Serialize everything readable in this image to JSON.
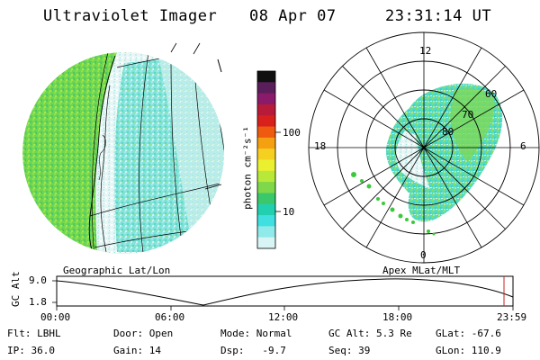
{
  "header": {
    "instrument": "Ultraviolet Imager",
    "date": "08 Apr 07",
    "time": "23:31:14 UT"
  },
  "colorbar": {
    "unit_label": "photon cm⁻²s⁻¹",
    "ticks": [
      "100",
      "10"
    ],
    "colors": [
      "#101010",
      "#5a1f5a",
      "#8a1a6a",
      "#b81b3a",
      "#d8201c",
      "#ee5a10",
      "#f4a010",
      "#f6d020",
      "#eaf030",
      "#b8e838",
      "#7ed84a",
      "#3ac86a",
      "#22d0b0",
      "#40e0e0",
      "#90eaea",
      "#d8f4f4"
    ]
  },
  "left_globe": {
    "caption": "Geographic Lat/Lon"
  },
  "right_polar": {
    "caption": "Apex MLat/MLT",
    "mlt_labels": {
      "top": "12",
      "left": "18",
      "right": "6",
      "bottom": "0"
    },
    "lat_labels": [
      "60",
      "70",
      "80"
    ]
  },
  "timeline": {
    "axis_label": "GC Alt",
    "y_ticks": [
      "9.0",
      "1.8"
    ],
    "x_ticks": [
      "00:00",
      "06:00",
      "12:00",
      "18:00",
      "23:59"
    ],
    "current_marker_color": "#cc2222"
  },
  "info": {
    "row1": {
      "filter": "Flt: LBHL",
      "door": "Door: Open",
      "mode": "Mode: Normal",
      "gcalt": "GC Alt: 5.3 Re",
      "glat": "GLat: -67.6"
    },
    "row2": {
      "ip": "IP: 36.0",
      "gain": "Gain: 14",
      "dsp": "Dsp:   -9.7",
      "seq": "Seq: 39",
      "glon": "GLon: 110.9"
    }
  }
}
